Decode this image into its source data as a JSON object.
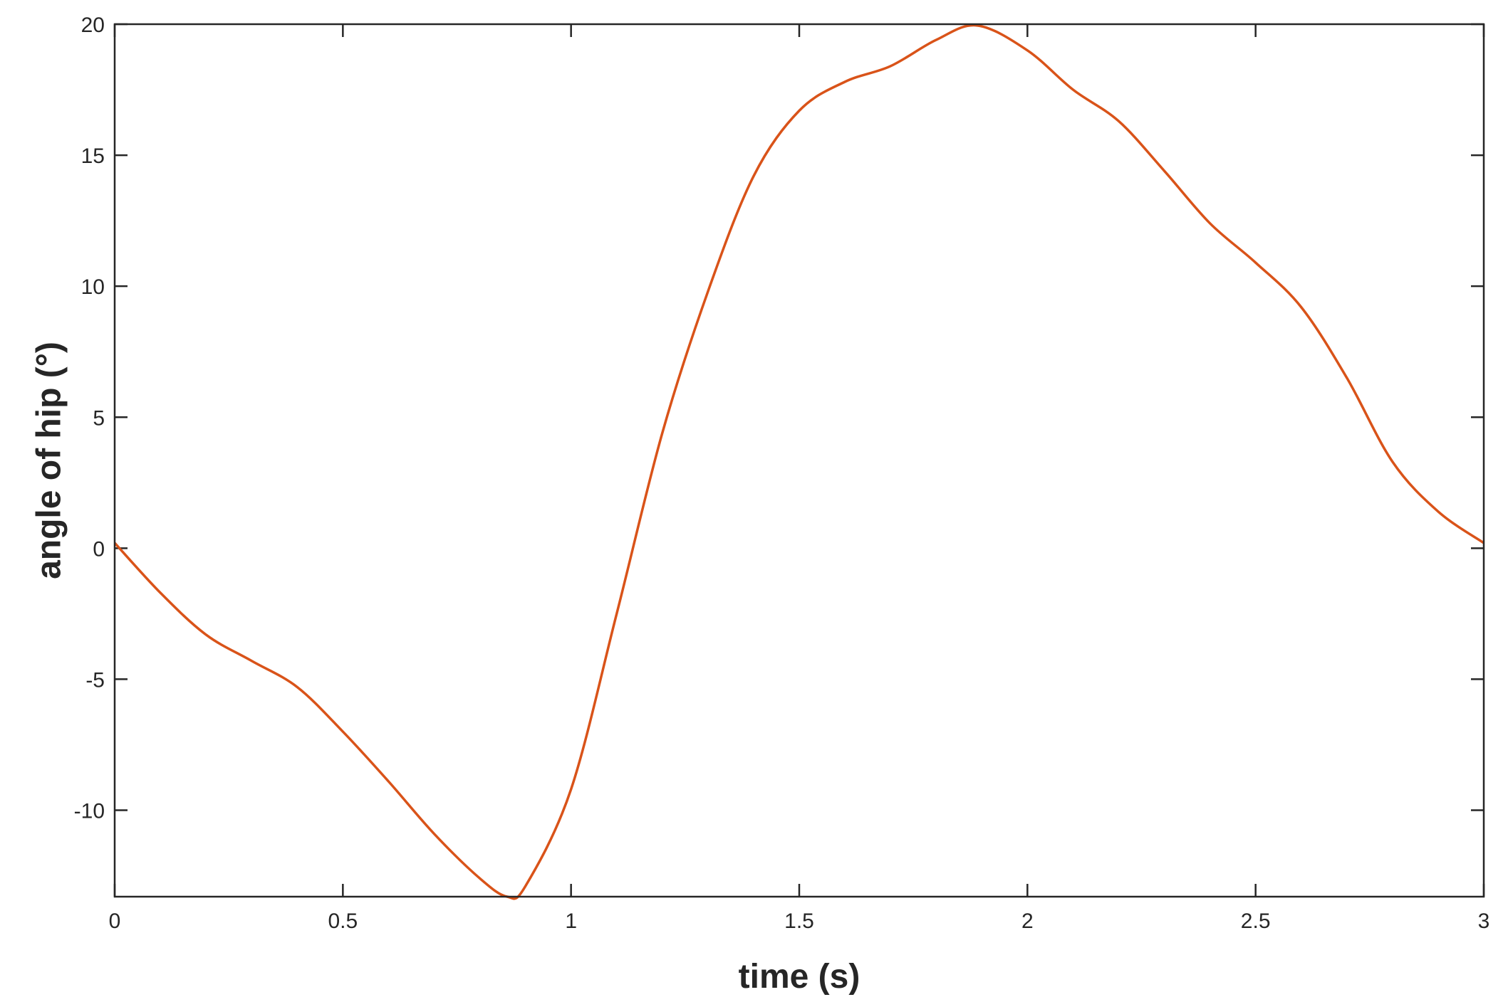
{
  "chart_data": {
    "type": "line",
    "title": "",
    "xlabel": "time (s)",
    "ylabel": "angle of hip (°)",
    "xlim": [
      0,
      3
    ],
    "ylim": [
      -13.3,
      20
    ],
    "xticks": [
      0,
      0.5,
      1,
      1.5,
      2,
      2.5,
      3
    ],
    "yticks": [
      -10,
      -5,
      0,
      5,
      10,
      15,
      20
    ],
    "xtick_labels": [
      "0",
      "0.5",
      "1",
      "1.5",
      "2",
      "2.5",
      "3"
    ],
    "ytick_labels": [
      "-10",
      "-5",
      "0",
      "5",
      "10",
      "15",
      "20"
    ],
    "grid": false,
    "colors": {
      "line": "#D95319",
      "axes": "#262626"
    },
    "series": [
      {
        "x": [
          0,
          0.1,
          0.2,
          0.3,
          0.4,
          0.5,
          0.6,
          0.7,
          0.8,
          0.86,
          0.9,
          1.0,
          1.1,
          1.2,
          1.3,
          1.4,
          1.5,
          1.6,
          1.7,
          1.8,
          1.89,
          2.0,
          2.1,
          2.2,
          2.3,
          2.4,
          2.5,
          2.6,
          2.7,
          2.8,
          2.9,
          3.0
        ],
        "y": [
          0.2,
          -1.7,
          -3.3,
          -4.3,
          -5.3,
          -7.0,
          -8.9,
          -10.9,
          -12.6,
          -13.3,
          -12.9,
          -9.2,
          -2.5,
          4.4,
          9.8,
          14.2,
          16.7,
          17.8,
          18.4,
          19.4,
          19.95,
          19.0,
          17.5,
          16.3,
          14.4,
          12.4,
          10.9,
          9.2,
          6.5,
          3.3,
          1.4,
          0.2
        ]
      }
    ]
  }
}
